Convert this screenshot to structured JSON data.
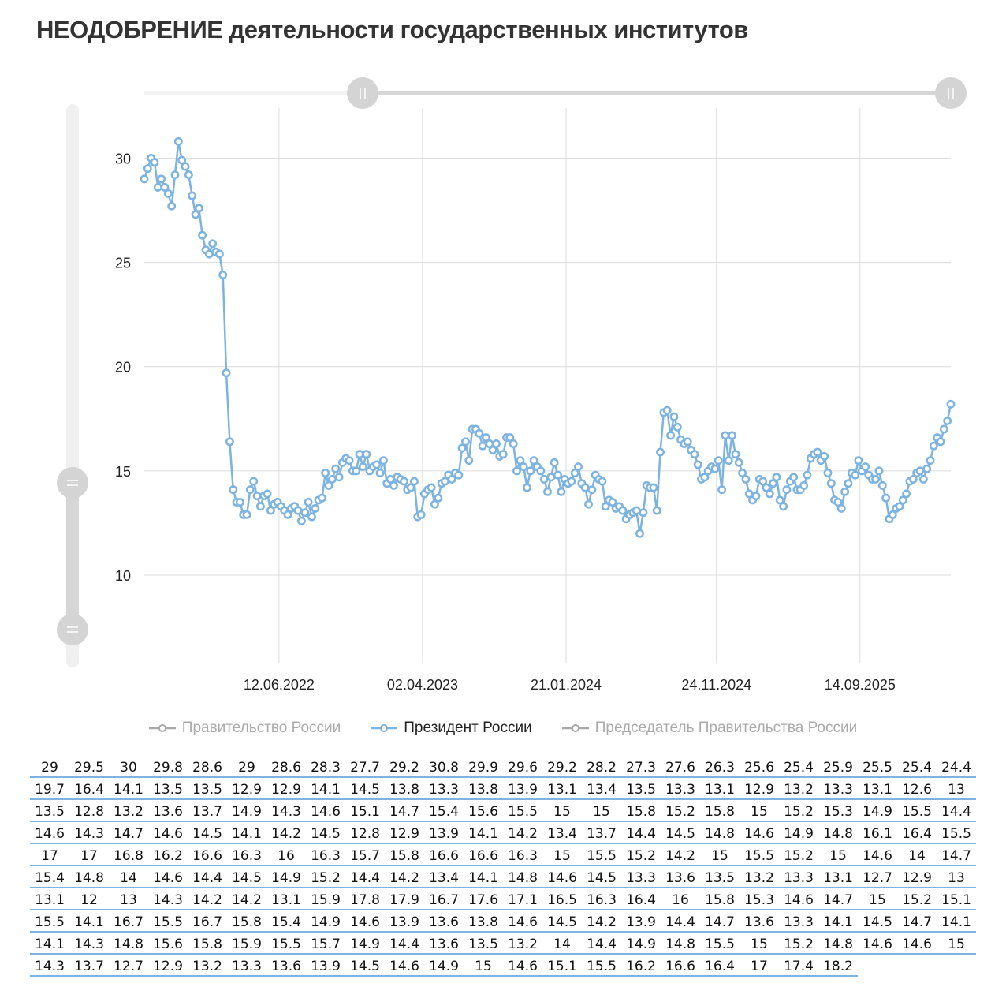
{
  "title": "НЕОДОБРЕНИЕ деятельности государственных институтов",
  "legend": [
    {
      "label": "Правительство России",
      "active": false,
      "color": "#a8a8a8"
    },
    {
      "label": "Президент России",
      "active": true,
      "color": "#7db3e0"
    },
    {
      "label": "Председатель Правительства России",
      "active": false,
      "color": "#a8a8a8"
    }
  ],
  "chart_data": {
    "type": "line",
    "title": "НЕОДОБРЕНИЕ деятельности государственных институтов",
    "xlabel": "",
    "ylabel": "",
    "ylim": [
      5.8,
      32.4
    ],
    "xlim": [
      "2021-09-09",
      "2026-03-19"
    ],
    "grid": true,
    "legend_position": "bottom",
    "y_ticks": [
      10,
      15,
      20,
      25,
      30
    ],
    "x_ticks": [
      {
        "date": "2022-06-12",
        "label": "12.06.2022"
      },
      {
        "date": "2023-04-02",
        "label": "02.04.2023"
      },
      {
        "date": "2024-01-21",
        "label": "21.01.2024"
      },
      {
        "date": "2024-11-24",
        "label": "24.11.2024"
      },
      {
        "date": "2025-09-14",
        "label": "14.09.2025"
      }
    ],
    "data_labels": true,
    "series": [
      {
        "name": "Президент России",
        "color": "#7db3e0",
        "x": [
          "2021-09-09",
          "2021-09-16",
          "2021-09-23",
          "2021-09-30",
          "2021-10-07",
          "2021-10-14",
          "2021-10-21",
          "2021-10-28",
          "2021-11-04",
          "2021-11-11",
          "2021-11-18",
          "2021-11-25",
          "2021-12-02",
          "2021-12-09",
          "2021-12-16",
          "2021-12-23",
          "2021-12-30",
          "2022-01-06",
          "2022-01-13",
          "2022-01-20",
          "2022-01-27",
          "2022-02-03",
          "2022-02-10",
          "2022-02-17",
          "2022-02-24",
          "2022-03-03",
          "2022-03-10",
          "2022-03-17",
          "2022-03-24",
          "2022-03-31",
          "2022-04-07",
          "2022-04-14",
          "2022-04-21",
          "2022-04-28",
          "2022-05-05",
          "2022-05-12",
          "2022-05-19",
          "2022-05-26",
          "2022-06-02",
          "2022-06-09",
          "2022-06-16",
          "2022-06-23",
          "2022-06-30",
          "2022-07-07",
          "2022-07-14",
          "2022-07-21",
          "2022-07-28",
          "2022-08-04",
          "2022-08-11",
          "2022-08-18",
          "2022-08-25",
          "2022-09-01",
          "2022-09-08",
          "2022-09-15",
          "2022-09-22",
          "2022-09-29",
          "2022-10-06",
          "2022-10-13",
          "2022-10-20",
          "2022-10-27",
          "2022-11-03",
          "2022-11-10",
          "2022-11-17",
          "2022-11-24",
          "2022-12-01",
          "2022-12-08",
          "2022-12-15",
          "2022-12-22",
          "2022-12-29",
          "2023-01-05",
          "2023-01-12",
          "2023-01-19",
          "2023-01-26",
          "2023-02-02",
          "2023-02-09",
          "2023-02-16",
          "2023-02-23",
          "2023-03-02",
          "2023-03-09",
          "2023-03-16",
          "2023-03-23",
          "2023-03-30",
          "2023-04-06",
          "2023-04-13",
          "2023-04-20",
          "2023-04-27",
          "2023-05-04",
          "2023-05-11",
          "2023-05-18",
          "2023-05-25",
          "2023-06-01",
          "2023-06-08",
          "2023-06-15",
          "2023-06-22",
          "2023-06-29",
          "2023-07-06",
          "2023-07-13",
          "2023-07-20",
          "2023-07-27",
          "2023-08-03",
          "2023-08-10",
          "2023-08-17",
          "2023-08-24",
          "2023-08-31",
          "2023-09-07",
          "2023-09-14",
          "2023-09-21",
          "2023-09-28",
          "2023-10-05",
          "2023-10-12",
          "2023-10-19",
          "2023-10-26",
          "2023-11-02",
          "2023-11-09",
          "2023-11-16",
          "2023-11-23",
          "2023-11-30",
          "2023-12-07",
          "2023-12-14",
          "2023-12-21",
          "2023-12-28",
          "2024-01-04",
          "2024-01-11",
          "2024-01-18",
          "2024-01-25",
          "2024-02-01",
          "2024-02-08",
          "2024-02-15",
          "2024-02-22",
          "2024-02-29",
          "2024-03-07",
          "2024-03-14",
          "2024-03-21",
          "2024-03-28",
          "2024-04-04",
          "2024-04-11",
          "2024-04-18",
          "2024-04-25",
          "2024-05-02",
          "2024-05-09",
          "2024-05-16",
          "2024-05-23",
          "2024-05-30",
          "2024-06-06",
          "2024-06-13",
          "2024-06-20",
          "2024-06-27",
          "2024-07-04",
          "2024-07-11",
          "2024-07-18",
          "2024-07-25",
          "2024-08-01",
          "2024-08-08",
          "2024-08-15",
          "2024-08-22",
          "2024-08-29",
          "2024-09-05",
          "2024-09-12",
          "2024-09-19",
          "2024-09-26",
          "2024-10-03",
          "2024-10-10",
          "2024-10-17",
          "2024-10-24",
          "2024-10-31",
          "2024-11-07",
          "2024-11-14",
          "2024-11-21",
          "2024-11-28",
          "2024-12-05",
          "2024-12-12",
          "2024-12-19",
          "2024-12-26",
          "2025-01-02",
          "2025-01-09",
          "2025-01-16",
          "2025-01-23",
          "2025-01-30",
          "2025-02-06",
          "2025-02-13",
          "2025-02-20",
          "2025-02-27",
          "2025-03-06",
          "2025-03-13",
          "2025-03-20",
          "2025-03-27",
          "2025-04-03",
          "2025-04-10",
          "2025-04-17",
          "2025-04-24",
          "2025-05-01",
          "2025-05-08",
          "2025-05-15",
          "2025-05-22",
          "2025-05-29",
          "2025-06-05",
          "2025-06-12",
          "2025-06-19",
          "2025-06-26",
          "2025-07-03",
          "2025-07-10",
          "2025-07-17",
          "2025-07-24",
          "2025-07-31",
          "2025-08-07",
          "2025-08-14",
          "2025-08-21",
          "2025-08-28",
          "2025-09-04",
          "2025-09-11",
          "2025-09-18",
          "2025-09-25",
          "2025-10-02",
          "2025-10-09",
          "2025-10-16",
          "2025-10-23",
          "2025-10-30",
          "2025-11-06",
          "2025-11-13",
          "2025-11-20",
          "2025-11-27",
          "2025-12-04",
          "2025-12-11",
          "2025-12-18",
          "2025-12-25",
          "2026-01-01",
          "2026-01-08",
          "2026-01-15",
          "2026-01-22",
          "2026-01-29",
          "2026-02-05",
          "2026-02-12",
          "2026-02-19",
          "2026-02-26",
          "2026-03-05",
          "2026-03-12",
          "2026-03-19"
        ],
        "values": [
          29.0,
          29.5,
          30.0,
          29.8,
          28.6,
          29.0,
          28.6,
          28.3,
          27.7,
          29.2,
          30.8,
          29.9,
          29.6,
          29.2,
          28.2,
          27.3,
          27.6,
          26.3,
          25.6,
          25.4,
          25.9,
          25.5,
          25.4,
          24.4,
          19.7,
          16.4,
          14.1,
          13.5,
          13.5,
          12.9,
          12.9,
          14.1,
          14.5,
          13.8,
          13.3,
          13.8,
          13.9,
          13.1,
          13.4,
          13.5,
          13.3,
          13.1,
          12.9,
          13.2,
          13.3,
          13.1,
          12.6,
          13.0,
          13.5,
          12.8,
          13.2,
          13.6,
          13.7,
          14.9,
          14.3,
          14.6,
          15.1,
          14.7,
          15.4,
          15.6,
          15.5,
          15.0,
          15.0,
          15.8,
          15.2,
          15.8,
          15.0,
          15.2,
          15.3,
          14.9,
          15.5,
          14.4,
          14.6,
          14.3,
          14.7,
          14.6,
          14.5,
          14.1,
          14.2,
          14.5,
          12.8,
          12.9,
          13.9,
          14.1,
          14.2,
          13.4,
          13.7,
          14.4,
          14.5,
          14.8,
          14.6,
          14.9,
          14.8,
          16.1,
          16.4,
          15.5,
          17.0,
          17.0,
          16.8,
          16.2,
          16.6,
          16.3,
          16.0,
          16.3,
          15.7,
          15.8,
          16.6,
          16.6,
          16.3,
          15.0,
          15.5,
          15.2,
          14.2,
          15.0,
          15.5,
          15.2,
          15.0,
          14.6,
          14.0,
          14.7,
          15.4,
          14.8,
          14.0,
          14.6,
          14.4,
          14.5,
          14.9,
          15.2,
          14.4,
          14.2,
          13.4,
          14.1,
          14.8,
          14.6,
          14.5,
          13.3,
          13.6,
          13.5,
          13.2,
          13.3,
          13.1,
          12.7,
          12.9,
          13.0,
          13.1,
          12.0,
          13.0,
          14.3,
          14.2,
          14.2,
          13.1,
          15.9,
          17.8,
          17.9,
          16.7,
          17.6,
          17.1,
          16.5,
          16.3,
          16.4,
          16.0,
          15.8,
          15.3,
          14.6,
          14.7,
          15.0,
          15.2,
          15.1,
          15.5,
          14.1,
          16.7,
          15.5,
          16.7,
          15.8,
          15.4,
          14.9,
          14.6,
          13.9,
          13.6,
          13.8,
          14.6,
          14.5,
          14.2,
          13.9,
          14.4,
          14.7,
          13.6,
          13.3,
          14.1,
          14.5,
          14.7,
          14.1,
          14.1,
          14.3,
          14.8,
          15.6,
          15.8,
          15.9,
          15.5,
          15.7,
          14.9,
          14.4,
          13.6,
          13.5,
          13.2,
          14.0,
          14.4,
          14.9,
          14.8,
          15.5,
          15.0,
          15.2,
          14.8,
          14.6,
          14.6,
          15.0,
          14.3,
          13.7,
          12.7,
          12.9,
          13.2,
          13.3,
          13.6,
          13.9,
          14.5,
          14.6,
          14.9,
          15.0,
          14.6,
          15.1,
          15.5,
          16.2,
          16.6,
          16.4,
          17.0,
          17.4,
          18.2
        ]
      }
    ]
  }
}
